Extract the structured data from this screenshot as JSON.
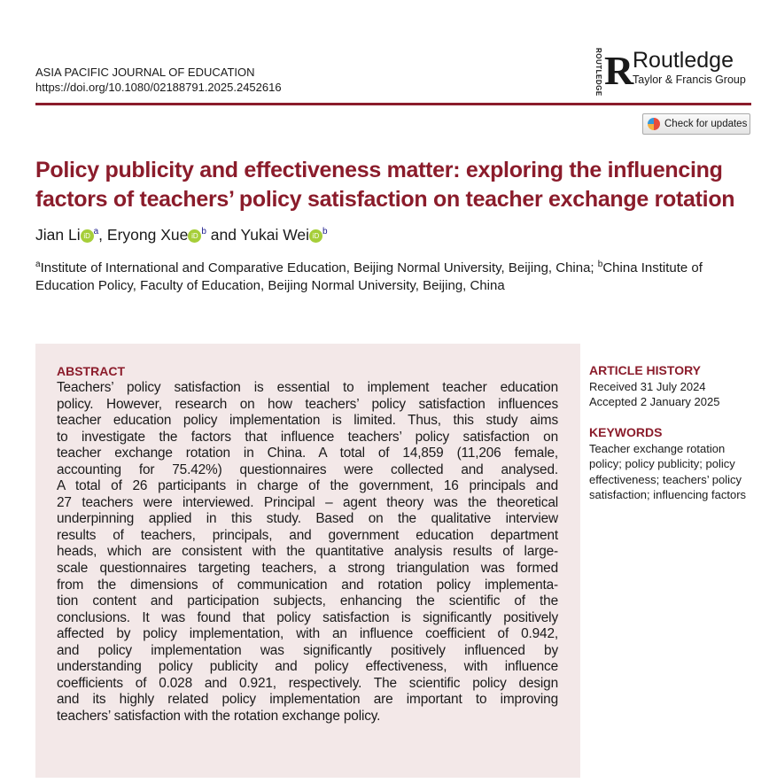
{
  "journal": {
    "name": "ASIA PACIFIC JOURNAL OF EDUCATION",
    "doi": "https://doi.org/10.1080/02188791.2025.2452616"
  },
  "publisher": {
    "vertical": "ROUTLEDGE",
    "name": "Routledge",
    "group": "Taylor & Francis Group"
  },
  "check_updates": "Check for updates",
  "title": "Policy publicity and effectiveness matter: exploring the influencing factors of teachers’ policy satisfaction on teacher exchange rotation",
  "authors": [
    {
      "name": "Jian Li",
      "aff": "a"
    },
    {
      "name": "Eryong Xue",
      "aff": "b"
    },
    {
      "name": "Yukai Wei",
      "aff": "b"
    }
  ],
  "author_sep": [
    ", ",
    " and "
  ],
  "orcid_label": "iD",
  "affiliations": {
    "a_mark": "a",
    "a": "Institute of International and Comparative Education, Beijing Normal University, Beijing, China; ",
    "b_mark": "b",
    "b": "China Institute of Education Policy, Faculty of Education, Beijing Normal University, Beijing, China"
  },
  "abstract": {
    "heading": "ABSTRACT",
    "lines": [
      "Teachers’ policy satisfaction is essential to implement teacher education",
      "policy. However, research on how teachers’ policy satisfaction influences",
      "teacher education policy implementation is limited. Thus, this study aims",
      "to investigate the factors that influence teachers’ policy satisfaction on",
      "teacher exchange rotation in China. A total of 14,859 (11,206 female,",
      "accounting for 75.42%) questionnaires were collected and analysed.",
      "A total of 26 participants in charge of the government, 16 principals and",
      "27 teachers were interviewed. Principal – agent theory was the theoretical",
      "underpinning applied in this study. Based on the qualitative interview",
      "results of teachers, principals, and government education department",
      "heads, which are consistent with the quantitative analysis results of large-",
      "scale questionnaires targeting teachers, a strong triangulation was formed",
      "from the dimensions of communication and rotation policy implementa-",
      "tion content and participation subjects, enhancing the scientific of the",
      "conclusions. It was found that policy satisfaction is significantly positively",
      "affected by policy implementation, with an influence coefficient of 0.942,",
      "and policy implementation was significantly positively influenced by",
      "understanding policy publicity and policy effectiveness, with influence",
      "coefficients of 0.028 and 0.921, respectively. The scientific policy design",
      "and its highly related policy implementation are important to improving",
      "teachers’ satisfaction with the rotation exchange policy."
    ]
  },
  "history": {
    "heading": "ARTICLE HISTORY",
    "received": "Received 31 July 2024",
    "accepted": "Accepted 2 January 2025"
  },
  "keywords": {
    "heading": "KEYWORDS",
    "text": "Teacher exchange rotation policy; policy publicity; policy effectiveness; teachers’ policy satisfaction; influencing factors"
  },
  "colors": {
    "accent": "#8b1c2b",
    "abstract_bg": "#f3e8e8",
    "orcid": "#a6ce39"
  }
}
